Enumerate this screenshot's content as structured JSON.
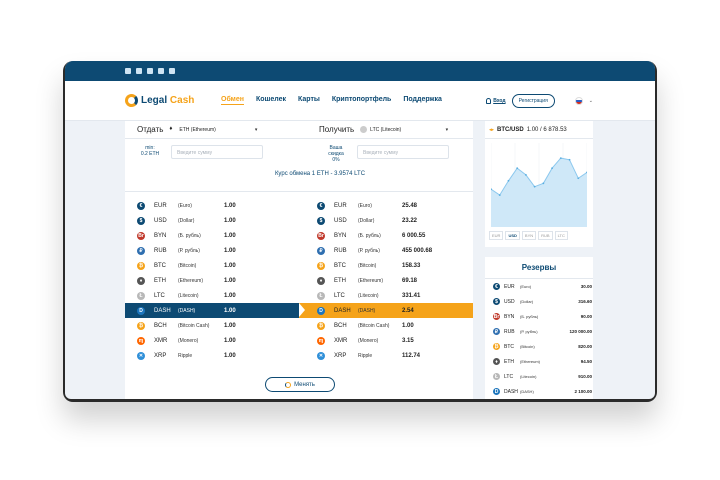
{
  "brand": {
    "part1": "Legal",
    "part2": "Cash"
  },
  "nav": {
    "items": [
      {
        "label": "Обмен",
        "active": true
      },
      {
        "label": "Кошелек"
      },
      {
        "label": "Карты"
      },
      {
        "label": "Криптопортфель"
      },
      {
        "label": "Поддержка"
      }
    ],
    "login": "Вход",
    "register": "Регистрация"
  },
  "exchange": {
    "give_label": "Отдать",
    "give_selected": "ETH (Ethereum)",
    "get_label": "Получить",
    "get_selected": "LTC (Litecoin)",
    "min_line1": "min:",
    "min_line2": "0.2 ETH",
    "discount_line1": "Ваша скидка",
    "discount_line2": "0%",
    "amount_placeholder": "Введите сумму",
    "rate": "Курс обмена 1 ETH - 3.9574 LTC",
    "button": "Менять"
  },
  "give_list": [
    {
      "code": "EUR",
      "name": "(Euro)",
      "value": "1.00",
      "icon": "euro-icon",
      "color": "#0d4a73"
    },
    {
      "code": "USD",
      "name": "(Dollar)",
      "value": "1.00",
      "icon": "dollar-icon",
      "color": "#0d4a73"
    },
    {
      "code": "BYN",
      "name": "(Б. рубль)",
      "value": "1.00",
      "icon": "byn-icon",
      "color": "#c0392b"
    },
    {
      "code": "RUB",
      "name": "(Р. рубль)",
      "value": "1.00",
      "icon": "ruble-icon",
      "color": "#2f6fb0"
    },
    {
      "code": "BTC",
      "name": "(Bitcoin)",
      "value": "1.00",
      "icon": "bitcoin-icon",
      "color": "#f5a31a"
    },
    {
      "code": "ETH",
      "name": "(Ethereum)",
      "value": "1.00",
      "icon": "ethereum-icon",
      "color": "#555555"
    },
    {
      "code": "LTC",
      "name": "(Litecoin)",
      "value": "1.00",
      "icon": "litecoin-icon",
      "color": "#b8b8b8"
    },
    {
      "code": "DASH",
      "name": "(DASH)",
      "value": "1.00",
      "icon": "dash-icon",
      "color": "#1c75bc",
      "selected": true
    },
    {
      "code": "BCH",
      "name": "(Bitcoin Cash)",
      "value": "1.00",
      "icon": "bitcoin-cash-icon",
      "color": "#f5a31a"
    },
    {
      "code": "XMR",
      "name": "(Monero)",
      "value": "1.00",
      "icon": "monero-icon",
      "color": "#ff6600"
    },
    {
      "code": "XRP",
      "name": "Ripple",
      "value": "1.00",
      "icon": "ripple-icon",
      "color": "#2f8fd8"
    }
  ],
  "get_list": [
    {
      "code": "EUR",
      "name": "(Euro)",
      "value": "25.48",
      "icon": "euro-icon",
      "color": "#0d4a73"
    },
    {
      "code": "USD",
      "name": "(Dollar)",
      "value": "23.22",
      "icon": "dollar-icon",
      "color": "#0d4a73"
    },
    {
      "code": "BYN",
      "name": "(Б. рубль)",
      "value": "6 000.55",
      "icon": "byn-icon",
      "color": "#c0392b"
    },
    {
      "code": "RUB",
      "name": "(Р. рубль)",
      "value": "455 000.68",
      "icon": "ruble-icon",
      "color": "#2f6fb0"
    },
    {
      "code": "BTC",
      "name": "(Bitcoin)",
      "value": "158.33",
      "icon": "bitcoin-icon",
      "color": "#f5a31a"
    },
    {
      "code": "ETH",
      "name": "(Ethereum)",
      "value": "69.18",
      "icon": "ethereum-icon",
      "color": "#555555"
    },
    {
      "code": "LTC",
      "name": "(Litecoin)",
      "value": "331.41",
      "icon": "litecoin-icon",
      "color": "#b8b8b8"
    },
    {
      "code": "DASH",
      "name": "(DASH)",
      "value": "2.54",
      "icon": "dash-icon",
      "color": "#1c75bc",
      "selected": true
    },
    {
      "code": "BCH",
      "name": "(Bitcoin Cash)",
      "value": "1.00",
      "icon": "bitcoin-cash-icon",
      "color": "#f5a31a"
    },
    {
      "code": "XMR",
      "name": "(Monero)",
      "value": "3.15",
      "icon": "monero-icon",
      "color": "#ff6600"
    },
    {
      "code": "XRP",
      "name": "Ripple",
      "value": "112.74",
      "icon": "ripple-icon",
      "color": "#2f8fd8"
    }
  ],
  "chart": {
    "pair": "BTC/USD",
    "rate": "1.00 / 6 878.53",
    "tabs": [
      {
        "label": "EUR"
      },
      {
        "label": "USD",
        "active": true
      },
      {
        "label": "BYN"
      },
      {
        "label": "RUB"
      },
      {
        "label": "LTC"
      }
    ],
    "series": [
      0.55,
      0.62,
      0.45,
      0.3,
      0.38,
      0.52,
      0.48,
      0.3,
      0.18,
      0.2,
      0.42,
      0.35
    ],
    "color": "#cfe8f8",
    "line_color": "#8cc8ee"
  },
  "reserves": {
    "title": "Резервы",
    "items": [
      {
        "code": "EUR",
        "name": "(Euro)",
        "value": "30.00",
        "icon": "euro-icon",
        "color": "#0d4a73"
      },
      {
        "code": "USD",
        "name": "(Dollar)",
        "value": "316.60",
        "icon": "dollar-icon",
        "color": "#0d4a73"
      },
      {
        "code": "BYN",
        "name": "(Б. рубль)",
        "value": "90.00",
        "icon": "byn-icon",
        "color": "#c0392b"
      },
      {
        "code": "RUB",
        "name": "(Р. рубль)",
        "value": "120 000.00",
        "icon": "ruble-icon",
        "color": "#2f6fb0"
      },
      {
        "code": "BTC",
        "name": "(Bitcoin)",
        "value": "820.00",
        "icon": "bitcoin-icon",
        "color": "#f5a31a"
      },
      {
        "code": "ETH",
        "name": "(Ethereum)",
        "value": "94.50",
        "icon": "ethereum-icon",
        "color": "#555555"
      },
      {
        "code": "LTC",
        "name": "(Litecoin)",
        "value": "910.00",
        "icon": "litecoin-icon",
        "color": "#b8b8b8"
      },
      {
        "code": "DASH",
        "name": "(DASH)",
        "value": "2 100.00",
        "icon": "dash-icon",
        "color": "#1c75bc"
      }
    ]
  }
}
